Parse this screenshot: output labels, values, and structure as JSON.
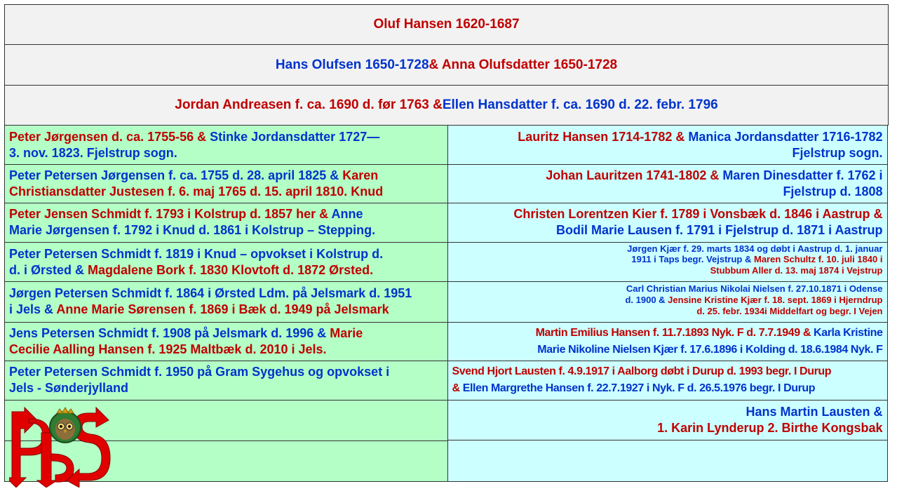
{
  "header_rows": [
    {
      "parts": [
        {
          "text": "Oluf Hansen 1620-1687",
          "color": "#c00000"
        }
      ]
    },
    {
      "parts": [
        {
          "text": "Hans Olufsen 1650-1728",
          "color": "#0033cc"
        },
        {
          "text": " & Anna Olufsdatter 1650-1728",
          "color": "#c00000"
        }
      ]
    },
    {
      "parts": [
        {
          "text": "Jordan Andreasen f. ca. 1690 d. før 1763 & ",
          "color": "#c00000"
        },
        {
          "text": "Ellen Hansdatter f. ca. 1690 d. 22. febr. 1796",
          "color": "#0033cc"
        }
      ]
    }
  ],
  "rows": [
    {
      "left": [
        "Peter Jørgensen d. ca. 1755-56 & ",
        "Stinke Jordansdatter 1727—",
        "3. nov. 1823. Fjelstrup sogn."
      ],
      "right": [
        "Lauritz Hansen 1714-1782 & ",
        "Manica Jordansdatter 1716-1782",
        "Fjelstrup sogn."
      ]
    },
    {
      "left": [
        "Peter Petersen Jørgensen f. ca. 1755 d. 28. april 1825 & ",
        "Karen",
        "Christiansdatter Justesen f. 6. maj 1765 d. 15. april 1810. Knud"
      ],
      "right": [
        "Johan Lauritzen 1741-1802 & ",
        "Maren Dinesdatter f. 1762 i",
        "Fjelstrup d. 1808"
      ]
    },
    {
      "left": [
        "Peter Jensen Schmidt f. 1793 i Kolstrup d. 1857 her & ",
        "Anne",
        "Marie Jørgensen f. 1792 i Knud d. 1861 i Kolstrup – Stepping."
      ],
      "right": [
        "Christen Lorentzen Kier f. 1789 i Vonsbæk d. 1846 i Aastrup &",
        "Bodil Marie Lausen f. 1791 i Fjelstrup d. 1871 i Aastrup"
      ]
    },
    {
      "left": [
        "Peter Petersen Schmidt f. 1819 i Knud – opvokset i Kolstrup d.",
        "d. i Ørsted & ",
        "Magdalene Bork f. 1830 Klovtoft d. 1872 Ørsted."
      ],
      "right": [
        "Jørgen Kjær f. 29. marts 1834 og døbt i Aastrup  d. 1. januar",
        "1911 i Taps begr. Vejstrup & ",
        "Maren Schultz f. 10. juli 1840 i",
        "Stubbum Aller d. 13. maj 1874 i Vejstrup"
      ]
    },
    {
      "left": [
        "Jørgen Petersen Schmidt f. 1864 i Ørsted Ldm. på Jelsmark d. 1951",
        "i Jels & ",
        "Anne Marie Sørensen f. 1869 i Bæk d. 1949 på Jelsmark"
      ],
      "right": [
        "Carl Christian Marius Nikolai Nielsen f. 27.10.1871 i Odense",
        "d. 1900 & ",
        "Jensine Kristine Kjær f. 18. sept. 1869 i Hjerndrup",
        "d. 25. febr. 1934i Middelfart og begr. I Vejen"
      ]
    },
    {
      "left": [
        "Jens Petersen Schmidt f. 1908 på Jelsmark d. 1996 & ",
        "Marie",
        "Cecilie Aalling Hansen f. 1925 Maltbæk d. 2010 i Jels."
      ],
      "right": [
        "Martin Emilius Hansen f. 11.7.1893 Nyk. F d. 7.7.1949 & ",
        "Karla Kristine",
        "Marie Nikoline Nielsen Kjær f. 17.6.1896 i Kolding d. 18.6.1984 Nyk. F"
      ]
    },
    {
      "left": [
        "Peter Petersen Schmidt f. 1950 på Gram Sygehus og opvokset i",
        "Jels - Sønderjylland"
      ],
      "right": [
        "Svend Hjort Lausten f. 4.9.1917 i Aalborg døbt i Durup d. 1993 begr. I Durup",
        "& ",
        "Ellen Margrethe Hansen f. 22.7.1927  i Nyk. F d. 26.5.1976 begr. I Durup"
      ]
    },
    {
      "left": [],
      "right": [
        "Hans Martin Lausten &",
        "1. Karin Lynderup 2. Birthe Kongsbak"
      ]
    }
  ],
  "colors": {
    "red": "#c00000",
    "blue": "#0033cc",
    "left_bg": "#b3ffc6",
    "right_bg": "#ccffff",
    "header_bg": "#f2f2f2"
  },
  "logo": {
    "name": "pps-owl-logo",
    "letters": "PPS"
  }
}
